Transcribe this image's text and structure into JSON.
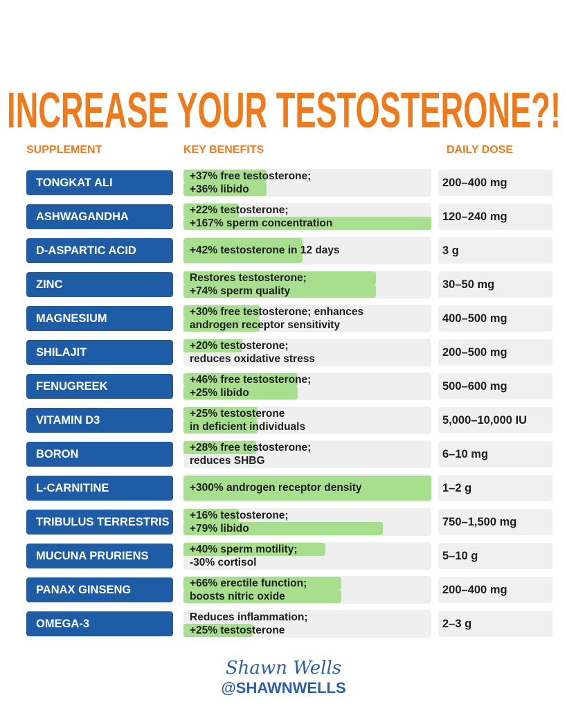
{
  "title": "INCREASE YOUR TESTOSTERONE?!",
  "headers": {
    "supplement": "SUPPLEMENT",
    "benefits": "KEY BENEFITS",
    "dose": "DAILY DOSE"
  },
  "rows": [
    {
      "supplement": "TONGKAT ALI",
      "benefits": [
        "+37% free testosterone;",
        "+36% libido"
      ],
      "dose": "200–400 mg"
    },
    {
      "supplement": "ASHWAGANDHA",
      "benefits": [
        "+22% testosterone;",
        "+167% sperm concentration"
      ],
      "dose": "120–240 mg"
    },
    {
      "supplement": "D-ASPARTIC ACID",
      "benefits": [
        "+42% testosterone in 12 days"
      ],
      "dose": "3 g"
    },
    {
      "supplement": "ZINC",
      "benefits": [
        "Restores testosterone;",
        "+74% sperm quality"
      ],
      "dose": "30–50 mg"
    },
    {
      "supplement": "MAGNESIUM",
      "benefits": [
        "+30% free testosterone; enhances",
        "androgen receptor sensitivity"
      ],
      "dose": "400–500 mg"
    },
    {
      "supplement": "SHILAJIT",
      "benefits": [
        "+20% testosterone;",
        "reduces oxidative stress"
      ],
      "dose": "200–500 mg"
    },
    {
      "supplement": "FENUGREEK",
      "benefits": [
        "+46% free testosterone;",
        "+25% libido"
      ],
      "dose": "500–600 mg"
    },
    {
      "supplement": "VITAMIN D3",
      "benefits": [
        "+25% testosterone",
        "in deficient individuals"
      ],
      "dose": "5,000–10,000 IU"
    },
    {
      "supplement": "BORON",
      "benefits": [
        "+28% free testosterone;",
        "reduces SHBG"
      ],
      "dose": "6–10 mg"
    },
    {
      "supplement": "L-CARNITINE",
      "benefits": [
        "+300% androgen receptor density"
      ],
      "dose": "1–2 g"
    },
    {
      "supplement": "TRIBULUS TERRESTRIS",
      "benefits": [
        "+16% testosterone;",
        "+79% libido"
      ],
      "dose": "750–1,500 mg"
    },
    {
      "supplement": "MUCUNA PRURIENS",
      "benefits": [
        "+40% sperm motility;",
        "-30% cortisol"
      ],
      "dose": "5–10 g"
    },
    {
      "supplement": "PANAX GINSENG",
      "benefits": [
        "+66% erectile function;",
        "boosts nitric oxide"
      ],
      "dose": "200–400 mg"
    },
    {
      "supplement": "OMEGA-3",
      "benefits": [
        "Reduces inflammation;",
        "+25% testosterone"
      ],
      "dose": "2–3 g"
    }
  ],
  "footer": {
    "signature": "Shawn Wells",
    "handle": "@SHAWNWELLS"
  }
}
